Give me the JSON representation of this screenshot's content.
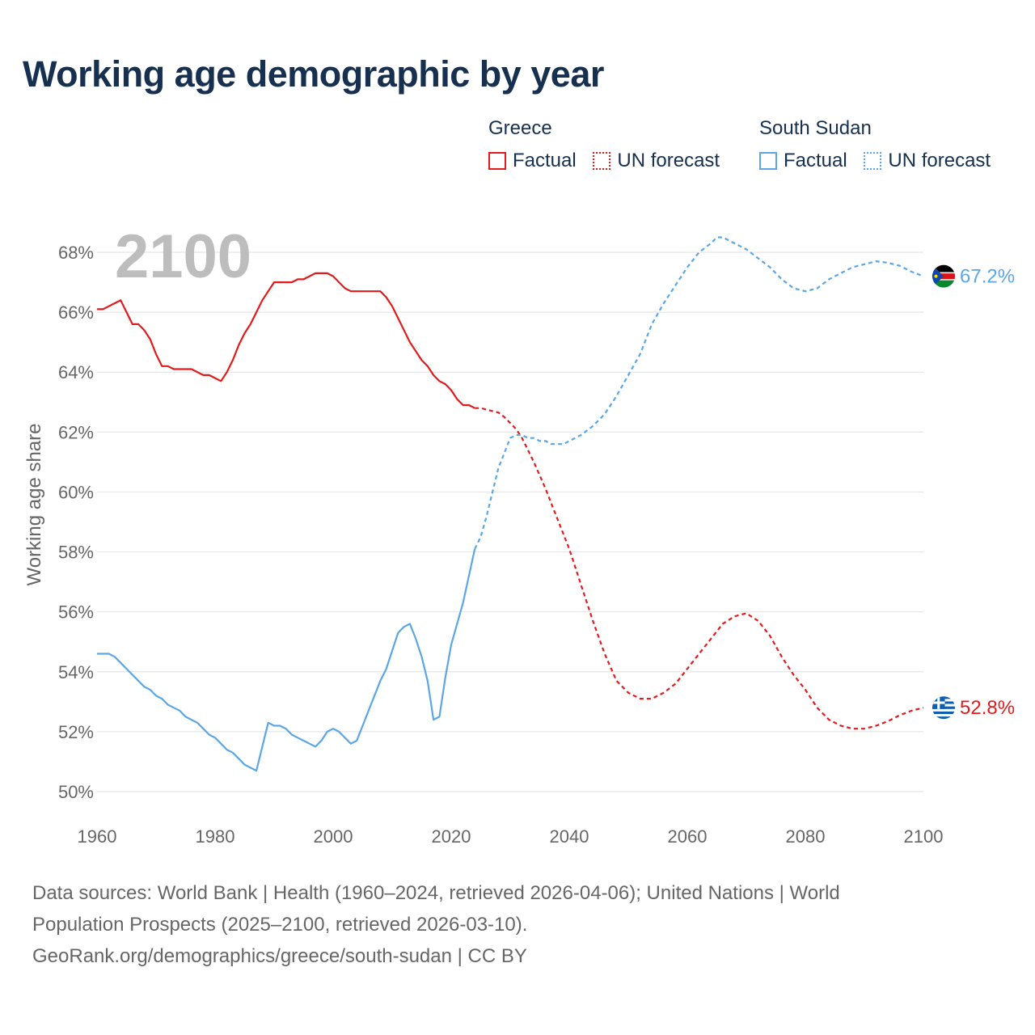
{
  "title": "Working age demographic by year",
  "legend": {
    "groups": [
      {
        "name": "Greece",
        "color": "#e31a1c",
        "factual_label": "Factual",
        "forecast_label": "UN forecast"
      },
      {
        "name": "South Sudan",
        "color": "#5aa6e6",
        "factual_label": "Factual",
        "forecast_label": "UN forecast"
      }
    ]
  },
  "year_watermark": "2100",
  "footer": {
    "line1": "Data sources: World Bank | Health (1960–2024, retrieved 2026-04-06); United Nations | World",
    "line2": "Population Prospects (2025–2100, retrieved 2026-03-10).",
    "line3": "GeoRank.org/demographics/greece/south-sudan | CC BY"
  },
  "chart_data": {
    "type": "line",
    "title": "Working age demographic by year",
    "xlabel": "",
    "ylabel": "Working age share",
    "xlim": [
      1960,
      2100
    ],
    "ylim": [
      49.5,
      69
    ],
    "x_ticks": [
      1960,
      1980,
      2000,
      2020,
      2040,
      2060,
      2080,
      2100
    ],
    "y_ticks": [
      50,
      52,
      54,
      56,
      58,
      60,
      62,
      64,
      66,
      68
    ],
    "y_tick_labels": [
      "50%",
      "52%",
      "54%",
      "56%",
      "58%",
      "60%",
      "62%",
      "64%",
      "66%",
      "68%"
    ],
    "factual_until": 2024,
    "grid": true,
    "series": [
      {
        "name": "Greece",
        "color": "#e31a1c",
        "end_label": "52.8%",
        "flag": "greece",
        "points": [
          [
            1960,
            66.1
          ],
          [
            1961,
            66.1
          ],
          [
            1962,
            66.2
          ],
          [
            1963,
            66.3
          ],
          [
            1964,
            66.4
          ],
          [
            1965,
            66.0
          ],
          [
            1966,
            65.6
          ],
          [
            1967,
            65.6
          ],
          [
            1968,
            65.4
          ],
          [
            1969,
            65.1
          ],
          [
            1970,
            64.6
          ],
          [
            1971,
            64.2
          ],
          [
            1972,
            64.2
          ],
          [
            1973,
            64.1
          ],
          [
            1974,
            64.1
          ],
          [
            1975,
            64.1
          ],
          [
            1976,
            64.1
          ],
          [
            1977,
            64.0
          ],
          [
            1978,
            63.9
          ],
          [
            1979,
            63.9
          ],
          [
            1980,
            63.8
          ],
          [
            1981,
            63.7
          ],
          [
            1982,
            64.0
          ],
          [
            1983,
            64.4
          ],
          [
            1984,
            64.9
          ],
          [
            1985,
            65.3
          ],
          [
            1986,
            65.6
          ],
          [
            1987,
            66.0
          ],
          [
            1988,
            66.4
          ],
          [
            1989,
            66.7
          ],
          [
            1990,
            67.0
          ],
          [
            1991,
            67.0
          ],
          [
            1992,
            67.0
          ],
          [
            1993,
            67.0
          ],
          [
            1994,
            67.1
          ],
          [
            1995,
            67.1
          ],
          [
            1996,
            67.2
          ],
          [
            1997,
            67.3
          ],
          [
            1998,
            67.3
          ],
          [
            1999,
            67.3
          ],
          [
            2000,
            67.2
          ],
          [
            2001,
            67.0
          ],
          [
            2002,
            66.8
          ],
          [
            2003,
            66.7
          ],
          [
            2004,
            66.7
          ],
          [
            2005,
            66.7
          ],
          [
            2006,
            66.7
          ],
          [
            2007,
            66.7
          ],
          [
            2008,
            66.7
          ],
          [
            2009,
            66.5
          ],
          [
            2010,
            66.2
          ],
          [
            2011,
            65.8
          ],
          [
            2012,
            65.4
          ],
          [
            2013,
            65.0
          ],
          [
            2014,
            64.7
          ],
          [
            2015,
            64.4
          ],
          [
            2016,
            64.2
          ],
          [
            2017,
            63.9
          ],
          [
            2018,
            63.7
          ],
          [
            2019,
            63.6
          ],
          [
            2020,
            63.4
          ],
          [
            2021,
            63.1
          ],
          [
            2022,
            62.9
          ],
          [
            2023,
            62.9
          ],
          [
            2024,
            62.8
          ],
          [
            2025,
            62.8
          ],
          [
            2026,
            62.75
          ],
          [
            2027,
            62.7
          ],
          [
            2028,
            62.65
          ],
          [
            2029,
            62.5
          ],
          [
            2030,
            62.3
          ],
          [
            2031,
            62.1
          ],
          [
            2032,
            61.8
          ],
          [
            2034,
            61.0
          ],
          [
            2036,
            60.1
          ],
          [
            2038,
            59.1
          ],
          [
            2040,
            58.1
          ],
          [
            2042,
            56.9
          ],
          [
            2044,
            55.7
          ],
          [
            2046,
            54.6
          ],
          [
            2048,
            53.7
          ],
          [
            2050,
            53.3
          ],
          [
            2052,
            53.1
          ],
          [
            2054,
            53.1
          ],
          [
            2056,
            53.3
          ],
          [
            2058,
            53.6
          ],
          [
            2060,
            54.1
          ],
          [
            2062,
            54.6
          ],
          [
            2064,
            55.1
          ],
          [
            2066,
            55.6
          ],
          [
            2068,
            55.85
          ],
          [
            2070,
            55.95
          ],
          [
            2072,
            55.7
          ],
          [
            2074,
            55.2
          ],
          [
            2076,
            54.5
          ],
          [
            2078,
            53.9
          ],
          [
            2080,
            53.4
          ],
          [
            2082,
            52.8
          ],
          [
            2084,
            52.4
          ],
          [
            2086,
            52.2
          ],
          [
            2088,
            52.1
          ],
          [
            2090,
            52.1
          ],
          [
            2092,
            52.2
          ],
          [
            2094,
            52.35
          ],
          [
            2096,
            52.55
          ],
          [
            2098,
            52.7
          ],
          [
            2100,
            52.8
          ]
        ]
      },
      {
        "name": "South Sudan",
        "color": "#5aa6e6",
        "end_label": "67.2%",
        "flag": "south-sudan",
        "points": [
          [
            1960,
            54.6
          ],
          [
            1961,
            54.6
          ],
          [
            1962,
            54.6
          ],
          [
            1963,
            54.5
          ],
          [
            1964,
            54.3
          ],
          [
            1965,
            54.1
          ],
          [
            1966,
            53.9
          ],
          [
            1967,
            53.7
          ],
          [
            1968,
            53.5
          ],
          [
            1969,
            53.4
          ],
          [
            1970,
            53.2
          ],
          [
            1971,
            53.1
          ],
          [
            1972,
            52.9
          ],
          [
            1973,
            52.8
          ],
          [
            1974,
            52.7
          ],
          [
            1975,
            52.5
          ],
          [
            1976,
            52.4
          ],
          [
            1977,
            52.3
          ],
          [
            1978,
            52.1
          ],
          [
            1979,
            51.9
          ],
          [
            1980,
            51.8
          ],
          [
            1981,
            51.6
          ],
          [
            1982,
            51.4
          ],
          [
            1983,
            51.3
          ],
          [
            1984,
            51.1
          ],
          [
            1985,
            50.9
          ],
          [
            1986,
            50.8
          ],
          [
            1987,
            50.7
          ],
          [
            1988,
            51.5
          ],
          [
            1989,
            52.3
          ],
          [
            1990,
            52.2
          ],
          [
            1991,
            52.2
          ],
          [
            1992,
            52.1
          ],
          [
            1993,
            51.9
          ],
          [
            1994,
            51.8
          ],
          [
            1995,
            51.7
          ],
          [
            1996,
            51.6
          ],
          [
            1997,
            51.5
          ],
          [
            1998,
            51.7
          ],
          [
            1999,
            52.0
          ],
          [
            2000,
            52.1
          ],
          [
            2001,
            52.0
          ],
          [
            2002,
            51.8
          ],
          [
            2003,
            51.6
          ],
          [
            2004,
            51.7
          ],
          [
            2005,
            52.2
          ],
          [
            2006,
            52.7
          ],
          [
            2007,
            53.2
          ],
          [
            2008,
            53.7
          ],
          [
            2009,
            54.1
          ],
          [
            2010,
            54.7
          ],
          [
            2011,
            55.3
          ],
          [
            2012,
            55.5
          ],
          [
            2013,
            55.6
          ],
          [
            2014,
            55.1
          ],
          [
            2015,
            54.5
          ],
          [
            2016,
            53.7
          ],
          [
            2017,
            52.4
          ],
          [
            2018,
            52.5
          ],
          [
            2019,
            53.8
          ],
          [
            2020,
            54.9
          ],
          [
            2021,
            55.6
          ],
          [
            2022,
            56.3
          ],
          [
            2023,
            57.2
          ],
          [
            2024,
            58.1
          ],
          [
            2025,
            58.5
          ],
          [
            2026,
            59.2
          ],
          [
            2027,
            60.0
          ],
          [
            2028,
            60.8
          ],
          [
            2029,
            61.3
          ],
          [
            2030,
            61.8
          ],
          [
            2031,
            61.9
          ],
          [
            2032,
            61.9
          ],
          [
            2033,
            61.8
          ],
          [
            2034,
            61.8
          ],
          [
            2035,
            61.7
          ],
          [
            2036,
            61.7
          ],
          [
            2037,
            61.6
          ],
          [
            2038,
            61.6
          ],
          [
            2039,
            61.6
          ],
          [
            2040,
            61.7
          ],
          [
            2042,
            61.9
          ],
          [
            2044,
            62.2
          ],
          [
            2046,
            62.6
          ],
          [
            2048,
            63.2
          ],
          [
            2050,
            63.9
          ],
          [
            2052,
            64.6
          ],
          [
            2054,
            65.6
          ],
          [
            2056,
            66.3
          ],
          [
            2058,
            66.9
          ],
          [
            2060,
            67.5
          ],
          [
            2062,
            68.0
          ],
          [
            2064,
            68.3
          ],
          [
            2065,
            68.5
          ],
          [
            2066,
            68.5
          ],
          [
            2068,
            68.3
          ],
          [
            2070,
            68.1
          ],
          [
            2072,
            67.8
          ],
          [
            2074,
            67.5
          ],
          [
            2076,
            67.1
          ],
          [
            2078,
            66.8
          ],
          [
            2080,
            66.7
          ],
          [
            2082,
            66.8
          ],
          [
            2084,
            67.1
          ],
          [
            2086,
            67.3
          ],
          [
            2088,
            67.5
          ],
          [
            2090,
            67.6
          ],
          [
            2092,
            67.7
          ],
          [
            2094,
            67.65
          ],
          [
            2096,
            67.55
          ],
          [
            2098,
            67.35
          ],
          [
            2100,
            67.2
          ]
        ]
      }
    ]
  }
}
